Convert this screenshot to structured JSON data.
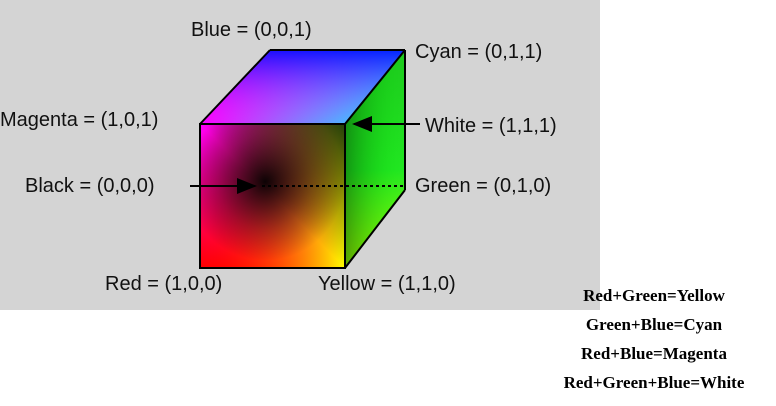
{
  "vertices": [
    {
      "name": "Blue",
      "coords": "(0,0,1)",
      "color": "#0000ff"
    },
    {
      "name": "Cyan",
      "coords": "(0,1,1)",
      "color": "#00ffff"
    },
    {
      "name": "Magenta",
      "coords": "(1,0,1)",
      "color": "#ff00ff"
    },
    {
      "name": "White",
      "coords": "(1,1,1)",
      "color": "#ffffff"
    },
    {
      "name": "Black",
      "coords": "(0,0,0)",
      "color": "#000000"
    },
    {
      "name": "Green",
      "coords": "(0,1,0)",
      "color": "#00ff00"
    },
    {
      "name": "Red",
      "coords": "(1,0,0)",
      "color": "#ff0000"
    },
    {
      "name": "Yellow",
      "coords": "(1,1,0)",
      "color": "#ffff00"
    }
  ],
  "labels": {
    "blue": "Blue = (0,0,1)",
    "cyan": "Cyan = (0,1,1)",
    "magenta": "Magenta = (1,0,1)",
    "white": "White = (1,1,1)",
    "black": "Black = (0,0,0)",
    "green": "Green = (0,1,0)",
    "red": "Red = (1,0,0)",
    "yellow": "Yellow = (1,1,0)"
  },
  "mixing": [
    "Red+Green=Yellow",
    "Green+Blue=Cyan",
    "Red+Blue=Magenta",
    "Red+Green+Blue=White"
  ],
  "colors": {
    "panel_background": "#d4d4d4",
    "edge": "#000000"
  }
}
